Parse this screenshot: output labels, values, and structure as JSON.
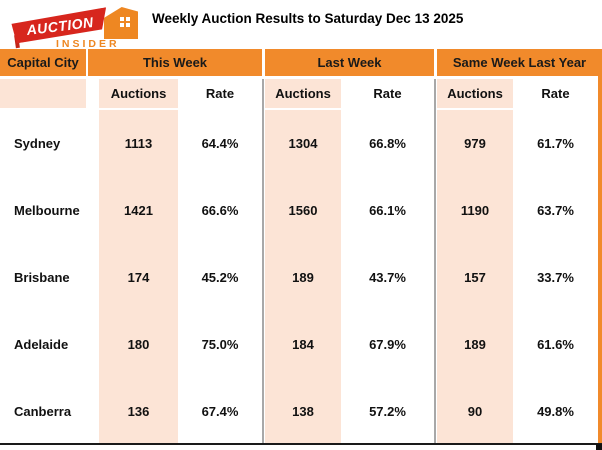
{
  "logo": {
    "top_text": "AUCTION",
    "bottom_text": "INSIDER"
  },
  "title": "Weekly Auction Results to Saturday Dec 13 2025",
  "chart_data": {
    "type": "table",
    "title": "Weekly Auction Results to Saturday Dec 13 2025",
    "corner_header": "Capital City",
    "column_groups": [
      "This Week",
      "Last Week",
      "Same Week Last Year"
    ],
    "sub_columns": [
      "Auctions",
      "Rate"
    ],
    "rows": [
      {
        "city": "Sydney",
        "values": [
          "1113",
          "64.4%",
          "1304",
          "66.8%",
          "979",
          "61.7%"
        ]
      },
      {
        "city": "Melbourne",
        "values": [
          "1421",
          "66.6%",
          "1560",
          "66.1%",
          "1190",
          "63.7%"
        ]
      },
      {
        "city": "Brisbane",
        "values": [
          "174",
          "45.2%",
          "189",
          "43.7%",
          "157",
          "33.7%"
        ]
      },
      {
        "city": "Adelaide",
        "values": [
          "180",
          "75.0%",
          "184",
          "67.9%",
          "189",
          "61.6%"
        ]
      },
      {
        "city": "Canberra",
        "values": [
          "136",
          "67.4%",
          "138",
          "57.2%",
          "90",
          "49.8%"
        ]
      }
    ]
  },
  "colors": {
    "header_orange": "#F18A2B",
    "cell_peach": "#FCE4D6",
    "logo_red": "#D7261D",
    "logo_orange": "#EE8722",
    "separator_gray": "#A8A8A8",
    "text_black": "#111111"
  }
}
